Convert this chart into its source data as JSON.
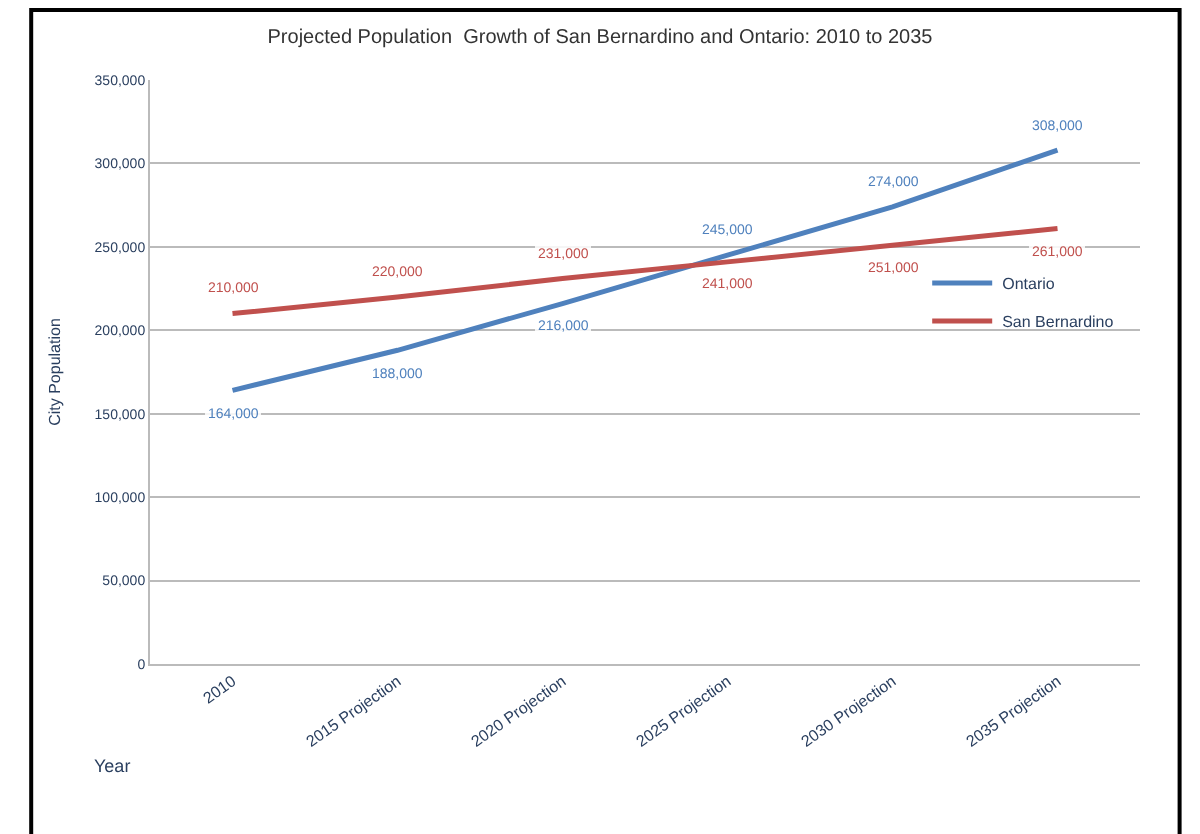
{
  "chart_data": {
    "type": "line",
    "title": "Projected Population  Growth of San Bernardino and Ontario: 2010 to 2035",
    "xlabel": "Year",
    "ylabel": "City Population",
    "categories": [
      "2010",
      "2015 Projection",
      "2020 Projection",
      "2025 Projection",
      "2030 Projection",
      "2035 Projection"
    ],
    "series": [
      {
        "name": "Ontario",
        "color": "#4f81bd",
        "values": [
          164000,
          188000,
          216000,
          245000,
          274000,
          308000
        ],
        "value_labels": [
          "164,000",
          "188,000",
          "216,000",
          "245,000",
          "274,000",
          "308,000"
        ]
      },
      {
        "name": "San Bernardino",
        "color": "#c0504d",
        "values": [
          210000,
          220000,
          231000,
          241000,
          251000,
          261000
        ],
        "value_labels": [
          "210,000",
          "220,000",
          "231,000",
          "241,000",
          "251,000",
          "261,000"
        ]
      }
    ],
    "ylim": [
      0,
      350000
    ],
    "yticks": [
      {
        "value": 0,
        "label": "0"
      },
      {
        "value": 50000,
        "label": "50,000"
      },
      {
        "value": 100000,
        "label": "100,000"
      },
      {
        "value": 150000,
        "label": "150,000"
      },
      {
        "value": 200000,
        "label": "200,000"
      },
      {
        "value": 250000,
        "label": "250,000"
      },
      {
        "value": 300000,
        "label": "300,000"
      },
      {
        "value": 350000,
        "label": "350,000"
      }
    ],
    "grid": "y",
    "legend": "right",
    "marker": "none",
    "line_style": "solid"
  }
}
